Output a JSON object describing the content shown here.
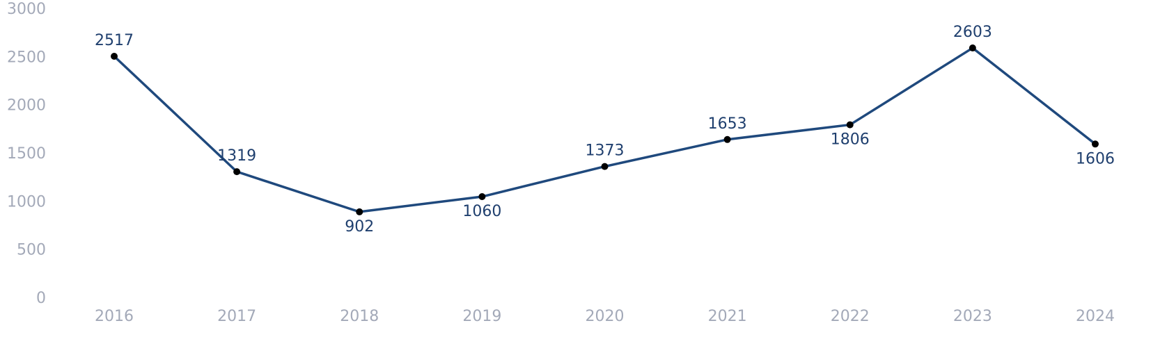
{
  "chart_data": {
    "type": "line",
    "categories": [
      "2016",
      "2017",
      "2018",
      "2019",
      "2020",
      "2021",
      "2022",
      "2023",
      "2024"
    ],
    "series": [
      {
        "name": "value",
        "color": "#1f497d",
        "values": [
          2517,
          1319,
          902,
          1060,
          1373,
          1653,
          1806,
          2603,
          1606
        ]
      }
    ],
    "ylim": [
      0,
      3000
    ],
    "yticks": [
      0,
      500,
      1000,
      1500,
      2000,
      2500,
      3000
    ],
    "grid": false,
    "marker_color": "#000000",
    "label_color": "#1f3f6e",
    "axis_label_color": "#a3a9b8"
  }
}
